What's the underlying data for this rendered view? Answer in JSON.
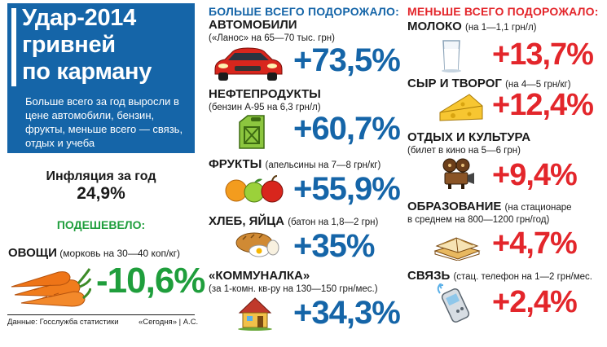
{
  "header": {
    "title_lines": [
      "Удар-2014",
      "гривней",
      "по карману"
    ],
    "subtitle": "Больше всего за год выросли в цене автомобили, бензин, фрукты, меньше всего — связь, отдых и учеба"
  },
  "inflation": {
    "label": "Инфляция за год",
    "value": "24,9%"
  },
  "cheaper": {
    "heading": "ПОДЕШЕВЕЛО:",
    "item": {
      "name": "ОВОЩИ",
      "note": "(морковь на 30—40 коп/кг)",
      "pct": "-10,6%",
      "icon": "carrots-icon"
    }
  },
  "footer": {
    "source": "Данные: Госслужба статистики",
    "credit": "«Сегодня» | А.С."
  },
  "most_expensive": {
    "heading": "БОЛЬШЕ ВСЕГО ПОДОРОЖАЛО:",
    "items": [
      {
        "name": "АВТОМОБИЛИ",
        "note": "(«Ланос» на 65—70 тыс. грн)",
        "pct": "+73,5%",
        "icon": "car-icon"
      },
      {
        "name": "НЕФТЕПРОДУКТЫ",
        "note": "(бензин А-95 на 6,3 грн/л)",
        "pct": "+60,7%",
        "icon": "fuel-canister-icon"
      },
      {
        "name": "ФРУКТЫ",
        "note": "(апельсины на 7—8 грн/кг)",
        "pct": "+55,9%",
        "icon": "fruits-icon"
      },
      {
        "name": "ХЛЕБ, ЯЙЦА",
        "note": "(батон на 1,8—2 грн)",
        "pct": "+35%",
        "icon": "bread-eggs-icon"
      },
      {
        "name": "«КОММУНАЛКА»",
        "note": "(за 1-комн. кв-ру на 130—150 грн/мес.)",
        "pct": "+34,3%",
        "icon": "house-icon"
      }
    ]
  },
  "least_expensive": {
    "heading": "МЕНЬШЕ ВСЕГО ПОДОРОЖАЛО:",
    "items": [
      {
        "name": "МОЛОКО",
        "note": "(на 1—1,1 грн/л)",
        "pct": "+13,7%",
        "icon": "milk-icon"
      },
      {
        "name": "СЫР И ТВОРОГ",
        "note": "(на 4—5 грн/кг)",
        "pct": "+12,4%",
        "icon": "cheese-icon"
      },
      {
        "name": "ОТДЫХ И КУЛЬТУРА",
        "note": "(билет в кино на 5—6 грн)",
        "pct": "+9,4%",
        "icon": "film-projector-icon"
      },
      {
        "name": "ОБРАЗОВАНИЕ",
        "note_line1": "(на стационаре",
        "note_line2": "в среднем на 800—1200 грн/год)",
        "pct": "+4,7%",
        "icon": "books-icon"
      },
      {
        "name": "СВЯЗЬ",
        "note": "(стац. телефон на 1—2 грн/мес.",
        "pct": "+2,4%",
        "icon": "phone-icon"
      }
    ]
  }
}
